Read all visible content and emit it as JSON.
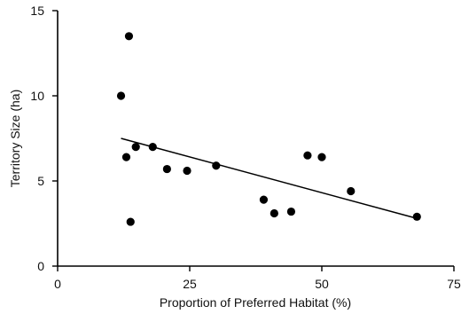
{
  "chart_data": {
    "type": "scatter",
    "title": "",
    "xlabel": "Proportion of Preferred Habitat (%)",
    "ylabel": "Territory Size (ha)",
    "xlim": [
      0,
      75
    ],
    "ylim": [
      0,
      15
    ],
    "xticks": [
      0,
      25,
      50,
      75
    ],
    "yticks": [
      0,
      5,
      10,
      15
    ],
    "xtick_labels": [
      "0",
      "25",
      "50",
      "75"
    ],
    "ytick_labels": [
      "0",
      "5",
      "10",
      "15"
    ],
    "grid": false,
    "legend": "none",
    "marker_color": "#000000",
    "points": [
      {
        "x": 12.0,
        "y": 10.0
      },
      {
        "x": 13.5,
        "y": 13.5
      },
      {
        "x": 13.0,
        "y": 6.4
      },
      {
        "x": 13.8,
        "y": 2.6
      },
      {
        "x": 14.8,
        "y": 7.0
      },
      {
        "x": 18.0,
        "y": 7.0
      },
      {
        "x": 20.7,
        "y": 5.7
      },
      {
        "x": 24.5,
        "y": 5.6
      },
      {
        "x": 30.0,
        "y": 5.9
      },
      {
        "x": 39.0,
        "y": 3.9
      },
      {
        "x": 41.0,
        "y": 3.1
      },
      {
        "x": 44.2,
        "y": 3.2
      },
      {
        "x": 47.3,
        "y": 6.5
      },
      {
        "x": 50.0,
        "y": 6.4
      },
      {
        "x": 55.5,
        "y": 4.4
      },
      {
        "x": 68.0,
        "y": 2.9
      }
    ],
    "trendline": {
      "x": [
        12.0,
        68.0
      ],
      "y": [
        7.5,
        2.8
      ]
    }
  }
}
